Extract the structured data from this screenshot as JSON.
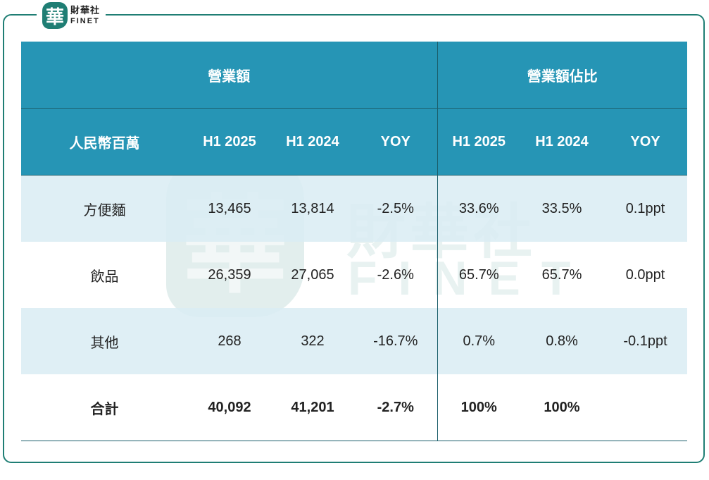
{
  "brand": {
    "mark_char": "華",
    "name_cn": "財華社",
    "name_en": "FINET",
    "color": "#1f7e74"
  },
  "colors": {
    "header_bg": "#2695b5",
    "band_bg": "#d9ecf3",
    "rule": "#1b5e6a"
  },
  "table": {
    "group_headers": {
      "revenue": "營業額",
      "share": "營業額佔比"
    },
    "columns": [
      "人民幣百萬",
      "H1 2025",
      "H1 2024",
      "YOY",
      "H1 2025",
      "H1 2024",
      "YOY"
    ],
    "rows": [
      {
        "label": "方便麵",
        "rev_h1_2025": "13,465",
        "rev_h1_2024": "13,814",
        "rev_yoy": "-2.5%",
        "share_h1_2025": "33.6%",
        "share_h1_2024": "33.5%",
        "share_yoy": "0.1ppt"
      },
      {
        "label": "飲品",
        "rev_h1_2025": "26,359",
        "rev_h1_2024": "27,065",
        "rev_yoy": "-2.6%",
        "share_h1_2025": "65.7%",
        "share_h1_2024": "65.7%",
        "share_yoy": "0.0ppt"
      },
      {
        "label": "其他",
        "rev_h1_2025": "268",
        "rev_h1_2024": "322",
        "rev_yoy": "-16.7%",
        "share_h1_2025": "0.7%",
        "share_h1_2024": "0.8%",
        "share_yoy": "-0.1ppt"
      },
      {
        "label": "合計",
        "rev_h1_2025": "40,092",
        "rev_h1_2024": "41,201",
        "rev_yoy": "-2.7%",
        "share_h1_2025": "100%",
        "share_h1_2024": "100%",
        "share_yoy": ""
      }
    ]
  }
}
